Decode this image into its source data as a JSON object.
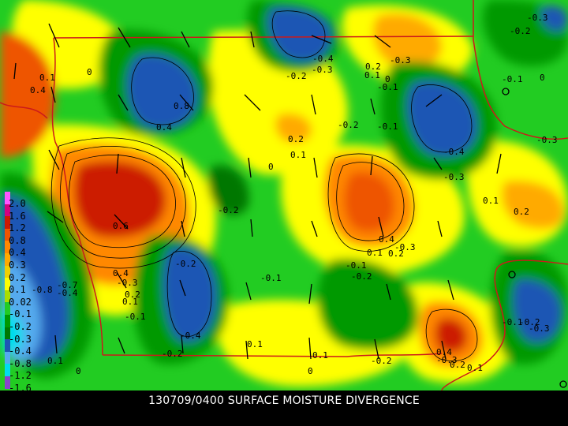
{
  "caption": "130709/0400 SURFACE MOISTURE DIVERGENCE",
  "legend": {
    "levels": [
      "2.0",
      "1.6",
      "1.2",
      "0.8",
      "0.4",
      "0.3",
      "0.2",
      "0.1",
      "0.02",
      "-0.1",
      "-0.2",
      "-0.3",
      "-0.4",
      "-0.8",
      "-1.2",
      "-1.6"
    ],
    "colors": [
      "#ff55ff",
      "#d4007f",
      "#cc1a00",
      "#ee5500",
      "#ff8800",
      "#ffaa00",
      "#f0d000",
      "#ffff00",
      "#aadd00",
      "#22cc22",
      "#009900",
      "#007700",
      "#1e56b4",
      "#55aaee",
      "#00ddee",
      "#8844cc"
    ]
  },
  "contour_labels": [
    "0.1",
    "0",
    "0.8",
    "0.4",
    "-0.2",
    "-0.8",
    "-0.4",
    "0.2",
    "0.6",
    "-0.3",
    "-0.1",
    "-0.7"
  ]
}
